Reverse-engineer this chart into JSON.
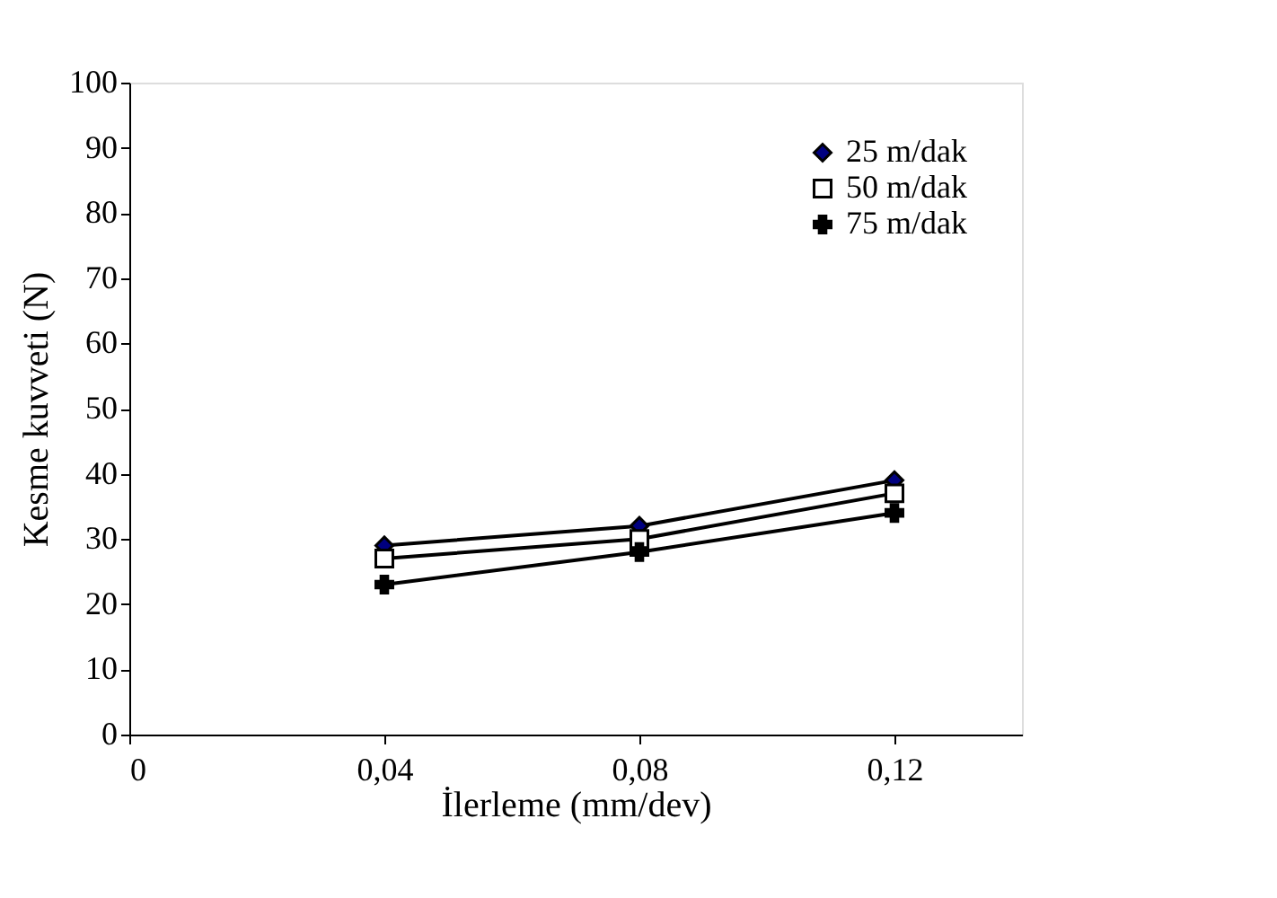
{
  "chart_data": {
    "type": "line",
    "xlabel": "İlerleme (mm/dev)",
    "ylabel": "Kesme kuvveti (N)",
    "x": [
      0.04,
      0.08,
      0.12
    ],
    "series": [
      {
        "name": "25 m/dak",
        "color": "#000000",
        "marker": "diamond",
        "values": [
          29,
          32,
          39
        ]
      },
      {
        "name": "50 m/dak",
        "color": "#000000",
        "marker": "square",
        "values": [
          27,
          30,
          37
        ]
      },
      {
        "name": "75 m/dak",
        "color": "#000000",
        "marker": "cross",
        "values": [
          23,
          28,
          34
        ]
      }
    ],
    "xlim": [
      0,
      0.14
    ],
    "xticks": [
      0,
      {
        "value": 0.04,
        "label": "0,04"
      },
      {
        "value": 0.08,
        "label": "0,08"
      },
      {
        "value": 0.12,
        "label": "0,12"
      }
    ],
    "ylim": [
      0,
      100
    ],
    "yticks": [
      0,
      10,
      20,
      30,
      40,
      50,
      60,
      70,
      80,
      90,
      100
    ],
    "grid": false,
    "legend": "top right",
    "line_style": "solid"
  }
}
